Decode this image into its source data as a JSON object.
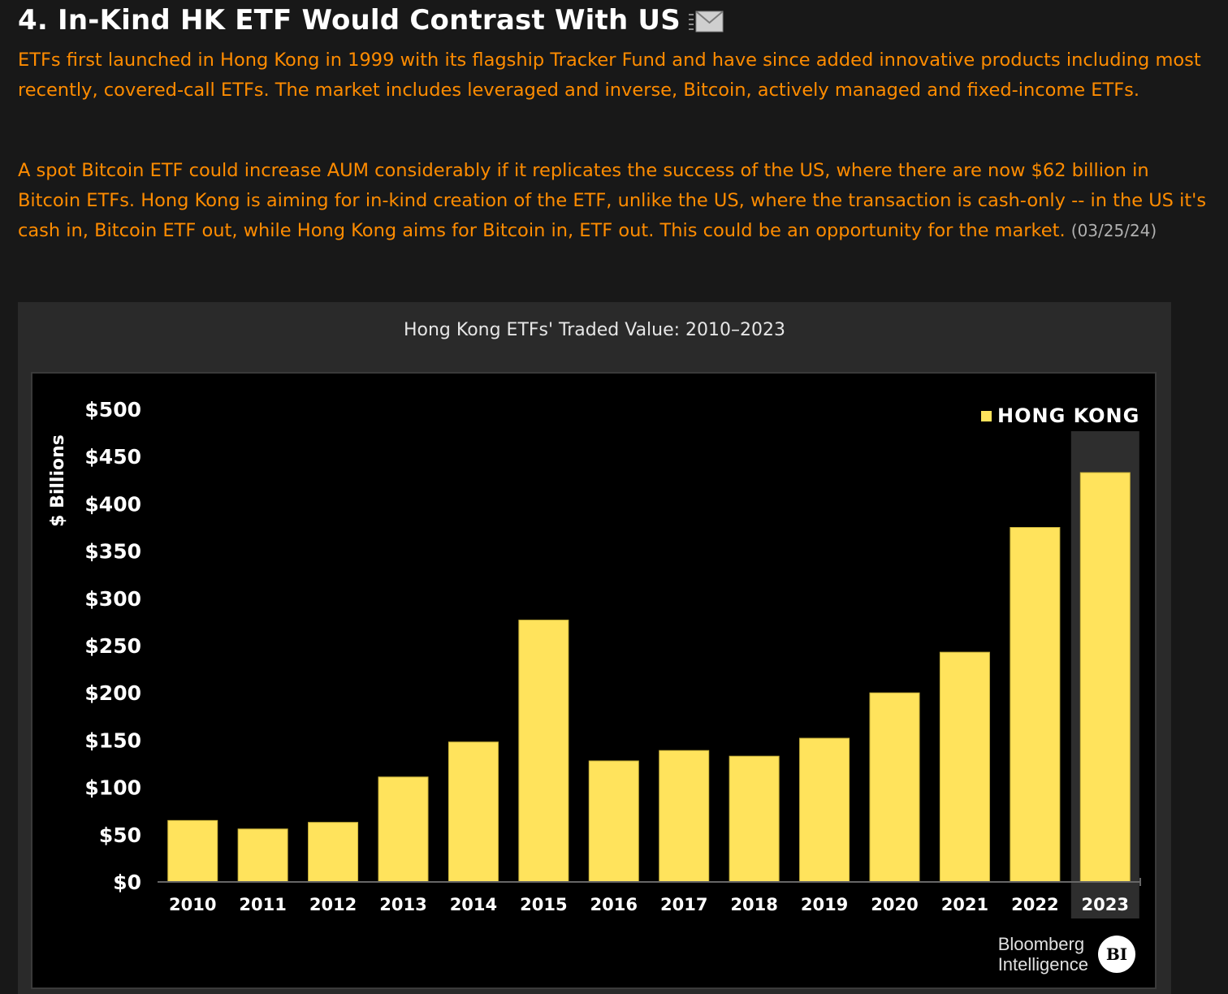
{
  "header": {
    "title": "4. In-Kind HK ETF Would Contrast With US",
    "mail_icon": "mail-icon"
  },
  "body": {
    "paragraph1": "ETFs first launched in Hong Kong in 1999 with its flagship Tracker Fund and have since added innovative products including most recently, covered-call ETFs. The market includes leveraged and inverse, Bitcoin, actively managed and fixed-income ETFs.",
    "paragraph2": "A spot Bitcoin ETF could increase AUM considerably if it replicates the success of the US, where there are now $62 billion in Bitcoin ETFs. Hong Kong is aiming for in-kind creation of the ETF, unlike the US, where the transaction is cash-only -- in the US it's cash in, Bitcoin ETF out, while Hong Kong aims for Bitcoin in, ETF out. This could be an opportunity for the market.",
    "date": "(03/25/24)"
  },
  "logo": {
    "line1": "Bloomberg",
    "line2": "Intelligence",
    "badge": "BI"
  },
  "colors": {
    "bar": "#ffe35c",
    "highlight_bg": "#2e2e2e",
    "text_orange": "#ff8c00"
  },
  "chart_data": {
    "type": "bar",
    "title": "Hong Kong ETFs' Traded Value: 2010–2023",
    "ylabel": "$ Billions",
    "xlabel": "",
    "ylim": [
      0,
      500
    ],
    "yticks": [
      0,
      50,
      100,
      150,
      200,
      250,
      300,
      350,
      400,
      450,
      500
    ],
    "ytick_labels": [
      "$0",
      "$50",
      "$100",
      "$150",
      "$200",
      "$250",
      "$300",
      "$350",
      "$400",
      "$450",
      "$500"
    ],
    "categories": [
      "2010",
      "2011",
      "2012",
      "2013",
      "2014",
      "2015",
      "2016",
      "2017",
      "2018",
      "2019",
      "2020",
      "2021",
      "2022",
      "2023"
    ],
    "series": [
      {
        "name": "HONG KONG",
        "values": [
          65,
          56,
          63,
          111,
          148,
          277,
          128,
          139,
          133,
          152,
          200,
          243,
          375,
          433
        ]
      }
    ],
    "highlight_category": "2023",
    "legend": "top-right"
  }
}
